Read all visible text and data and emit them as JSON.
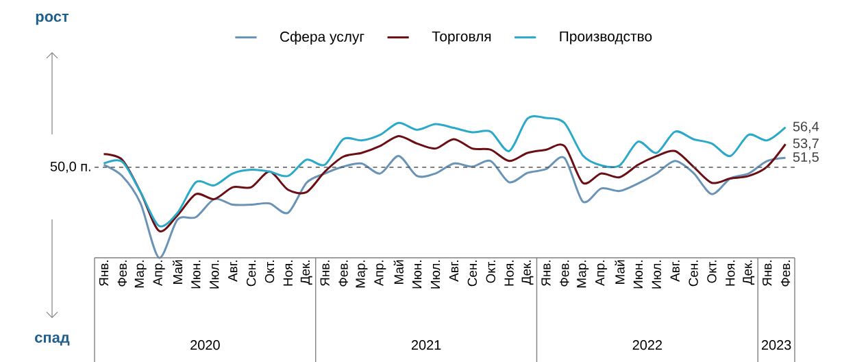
{
  "chart_data": {
    "type": "line",
    "categories": [
      "Янв.",
      "Фев.",
      "Мар.",
      "Апр.",
      "Май",
      "Июн.",
      "Июл.",
      "Авг.",
      "Сен.",
      "Окт.",
      "Ноя.",
      "Дек.",
      "Янв.",
      "Фев.",
      "Мар.",
      "Апр.",
      "Май",
      "Июн.",
      "Июл.",
      "Авг.",
      "Сен.",
      "Окт.",
      "Ноя.",
      "Дек.",
      "Янв.",
      "Фев.",
      "Мар.",
      "Апр.",
      "Май",
      "Июн.",
      "Июл.",
      "Авг.",
      "Сен.",
      "Окт.",
      "Ноя.",
      "Дек.",
      "Янв.",
      "Фев."
    ],
    "series": [
      {
        "name": "Сфера услуг",
        "color": "#6a93b8",
        "values": [
          50.4,
          48.6,
          44.2,
          35.5,
          41.6,
          42.0,
          44.9,
          44.0,
          44.0,
          44.2,
          42.7,
          47.5,
          49.0,
          50.1,
          50.6,
          49.0,
          51.8,
          48.6,
          49.0,
          50.6,
          50.1,
          51.0,
          47.6,
          49.1,
          49.7,
          51.5,
          44.5,
          46.6,
          46.2,
          47.4,
          49.0,
          51.0,
          49.1,
          45.7,
          48.2,
          49.0,
          51.0,
          51.5
        ],
        "value_labels": [
          null,
          null,
          null,
          null,
          null,
          null,
          null,
          null,
          null,
          null,
          null,
          null,
          null,
          null,
          null,
          null,
          null,
          null,
          null,
          null,
          null,
          null,
          null,
          null,
          null,
          null,
          null,
          null,
          null,
          null,
          null,
          null,
          null,
          null,
          null,
          null,
          null,
          "51,5"
        ]
      },
      {
        "name": "Торговля",
        "color": "#6b0f14",
        "values": [
          52.1,
          51.2,
          46.0,
          39.8,
          42.3,
          45.7,
          44.9,
          46.8,
          46.8,
          49.3,
          46.4,
          46.0,
          49.3,
          51.7,
          52.3,
          53.4,
          55.0,
          53.8,
          53.0,
          54.5,
          53.0,
          52.8,
          51.0,
          52.3,
          52.8,
          53.4,
          47.5,
          49.0,
          48.4,
          50.4,
          51.8,
          52.6,
          50.1,
          47.5,
          48.2,
          48.6,
          50.1,
          53.7
        ],
        "value_labels": [
          null,
          null,
          null,
          null,
          null,
          null,
          null,
          null,
          null,
          null,
          null,
          null,
          null,
          null,
          null,
          null,
          null,
          null,
          null,
          null,
          null,
          null,
          null,
          null,
          null,
          null,
          null,
          null,
          null,
          null,
          null,
          null,
          null,
          null,
          null,
          null,
          null,
          "53,7"
        ]
      },
      {
        "name": "Производство",
        "color": "#2aa9c9",
        "values": [
          50.6,
          50.9,
          46.0,
          40.6,
          42.7,
          47.6,
          47.1,
          49.0,
          49.6,
          49.3,
          48.6,
          51.2,
          50.4,
          54.5,
          54.3,
          55.2,
          57.1,
          56.0,
          56.9,
          56.3,
          55.6,
          55.7,
          52.6,
          57.8,
          57.9,
          57.1,
          51.9,
          50.3,
          50.3,
          54.1,
          52.3,
          55.7,
          54.5,
          53.8,
          51.8,
          55.2,
          54.3,
          56.4
        ],
        "value_labels": [
          null,
          null,
          null,
          null,
          null,
          null,
          null,
          null,
          null,
          null,
          null,
          null,
          null,
          null,
          null,
          null,
          null,
          null,
          null,
          null,
          null,
          null,
          null,
          null,
          null,
          null,
          null,
          null,
          null,
          null,
          null,
          null,
          null,
          null,
          null,
          null,
          null,
          "56,4"
        ]
      }
    ],
    "ref_lines": [
      {
        "axis": "y",
        "value": 50,
        "label": "50,0 п.",
        "line_style": "dashed",
        "color": "#555555"
      }
    ],
    "annotations": [
      "рост",
      "спад",
      "2020",
      "2021",
      "2022",
      "2023"
    ],
    "legend": "top",
    "grid": false,
    "marker": "none",
    "line_style": "solid"
  }
}
